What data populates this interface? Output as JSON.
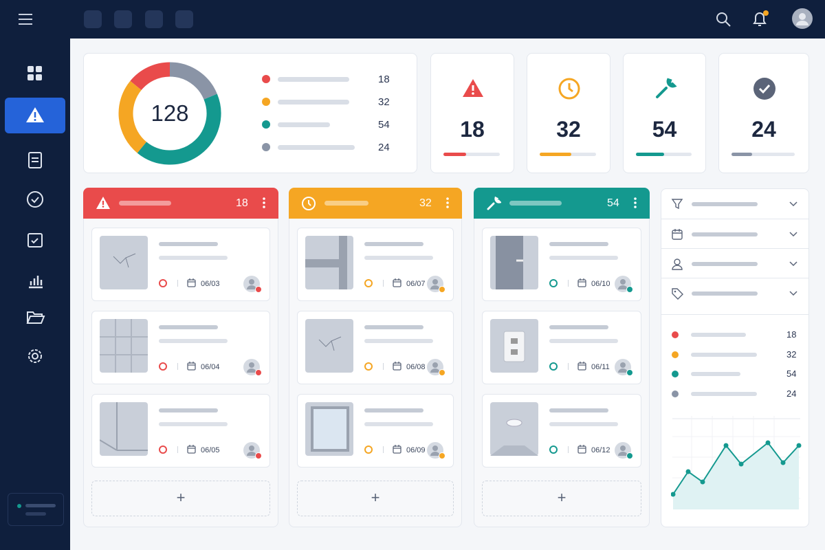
{
  "summary": {
    "total": 128,
    "legend": [
      18,
      32,
      54,
      24
    ]
  },
  "stats": [
    18,
    32,
    54,
    24
  ],
  "columns": [
    {
      "count": 18,
      "cards": [
        {
          "date": "06/03"
        },
        {
          "date": "06/04"
        },
        {
          "date": "06/05"
        }
      ]
    },
    {
      "count": 32,
      "cards": [
        {
          "date": "06/07"
        },
        {
          "date": "06/08"
        },
        {
          "date": "06/09"
        }
      ]
    },
    {
      "count": 54,
      "cards": [
        {
          "date": "06/10"
        },
        {
          "date": "06/11"
        },
        {
          "date": "06/12"
        }
      ]
    }
  ],
  "side_legend": [
    18,
    32,
    54,
    24
  ]
}
